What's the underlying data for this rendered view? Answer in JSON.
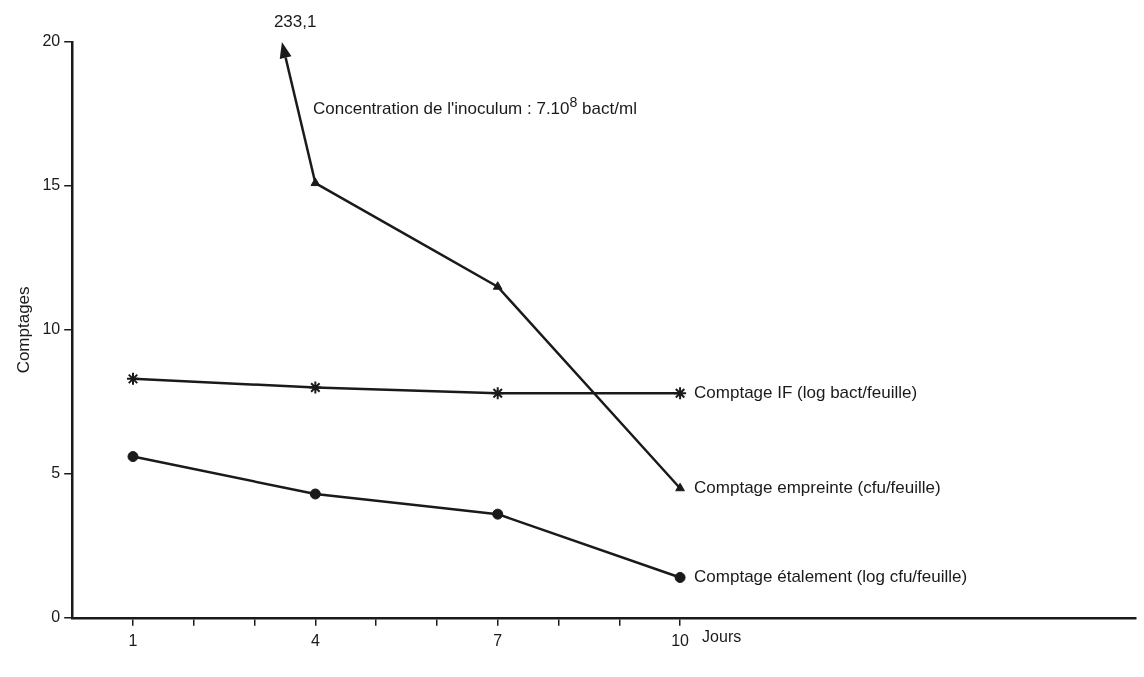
{
  "chart_data": {
    "type": "line",
    "ylabel": "Comptages",
    "xlabel": "Jours",
    "x": [
      1,
      4,
      7,
      10
    ],
    "xlim": [
      0,
      17.5
    ],
    "xticks": [
      1,
      {
        "value": 2,
        "label": null
      },
      {
        "value": 3,
        "label": null
      },
      4,
      {
        "value": 5,
        "label": null
      },
      {
        "value": 6,
        "label": null
      },
      7,
      {
        "value": 8,
        "label": null
      },
      {
        "value": 9,
        "label": null
      },
      10
    ],
    "ylim": [
      0,
      20
    ],
    "yticks": [
      0,
      5,
      10,
      15,
      20
    ],
    "grid": false,
    "legend": false,
    "line_style": "solid",
    "series": [
      {
        "name": "Comptage IF (log bact/feuille)",
        "color": "#1a1a1a",
        "marker": "cross",
        "values": [
          8.3,
          8.0,
          7.8,
          7.8
        ]
      },
      {
        "name": "Comptage empreinte (cfu/feuille)",
        "color": "#1a1a1a",
        "marker": "triangle",
        "values": [
          null,
          15.1,
          11.5,
          4.5
        ]
      },
      {
        "name": "Comptage étalement (log cfu/feuille)",
        "color": "#1a1a1a",
        "marker": "circle",
        "values": [
          5.6,
          4.3,
          3.6,
          1.4
        ]
      }
    ],
    "annotations": [
      "233,1",
      "Concentration de l'inoculum : 7.10$^{8}$ bact/ml"
    ]
  }
}
